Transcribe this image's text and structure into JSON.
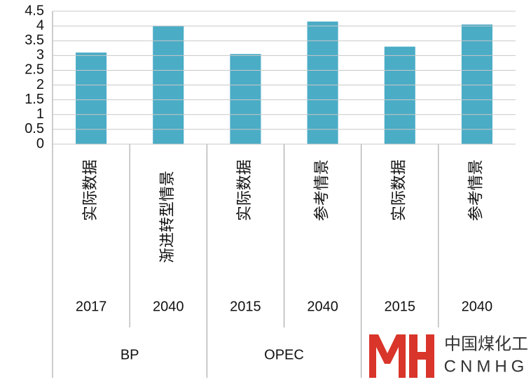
{
  "chart_data": {
    "type": "bar",
    "categories": [
      "实际数据",
      "渐进转型情景",
      "实际数据",
      "参考情景",
      "实际数据",
      "参考情景"
    ],
    "years": [
      "2017",
      "2040",
      "2015",
      "2040",
      "2015",
      "2040"
    ],
    "groups": [
      "BP",
      "OPEC",
      null
    ],
    "values": [
      3.1,
      4.0,
      3.05,
      4.15,
      3.3,
      4.05
    ],
    "color": "#4bacc6",
    "ylim": [
      0,
      4.5
    ],
    "yticks": [
      0,
      0.5,
      1,
      1.5,
      2,
      2.5,
      3,
      3.5,
      4,
      4.5
    ],
    "grid": true
  },
  "watermark": {
    "text": "中国煤化工",
    "subtext": "CNMHG"
  }
}
